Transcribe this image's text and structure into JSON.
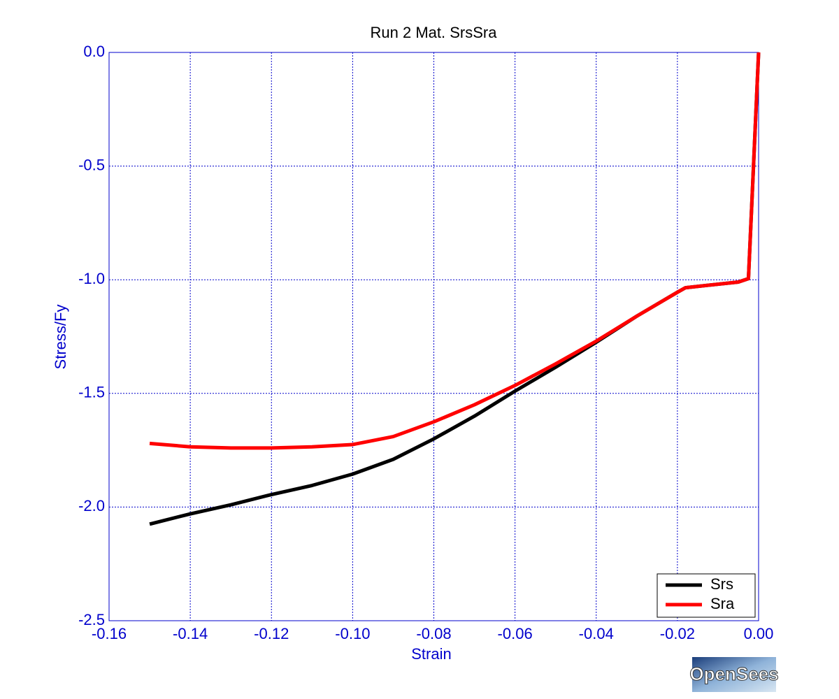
{
  "chart_data": {
    "type": "line",
    "title": "Run 2   Mat. SrsSra",
    "x_label": "Strain",
    "y_label": "Stress/Fy",
    "x": [
      -0.15,
      -0.14,
      -0.13,
      -0.12,
      -0.11,
      -0.1,
      -0.09,
      -0.08,
      -0.07,
      -0.06,
      -0.05,
      -0.04,
      -0.03,
      -0.02,
      -0.018,
      -0.005,
      -0.0025,
      0.0
    ],
    "series": [
      {
        "name": "Srs",
        "color": "#000000",
        "values": [
          -2.075,
          -2.03,
          -1.99,
          -1.945,
          -1.905,
          -1.855,
          -1.79,
          -1.7,
          -1.6,
          -1.49,
          -1.385,
          -1.275,
          -1.16,
          -1.055,
          -1.035,
          -1.01,
          -0.995,
          0.0
        ]
      },
      {
        "name": "Sra",
        "color": "#ff0000",
        "values": [
          -1.72,
          -1.735,
          -1.74,
          -1.74,
          -1.735,
          -1.725,
          -1.69,
          -1.625,
          -1.55,
          -1.465,
          -1.37,
          -1.27,
          -1.16,
          -1.055,
          -1.035,
          -1.01,
          -0.995,
          0.0
        ]
      }
    ],
    "xlim": [
      -0.16,
      0.0
    ],
    "ylim": [
      -2.5,
      0.0
    ],
    "xticks": [
      -0.16,
      -0.14,
      -0.12,
      {
        "value": -0.1,
        "label": "-0.10"
      },
      -0.08,
      -0.06,
      -0.04,
      -0.02,
      {
        "value": 0.0,
        "label": "0.00"
      }
    ],
    "yticks": [
      {
        "value": 0.0,
        "label": "0.0"
      },
      -0.5,
      {
        "value": -1.0,
        "label": "-1.0"
      },
      -1.5,
      {
        "value": -2.0,
        "label": "-2.0"
      },
      -2.5
    ],
    "grid": true,
    "legend": "lower right"
  },
  "logo_text": "OpenSees"
}
